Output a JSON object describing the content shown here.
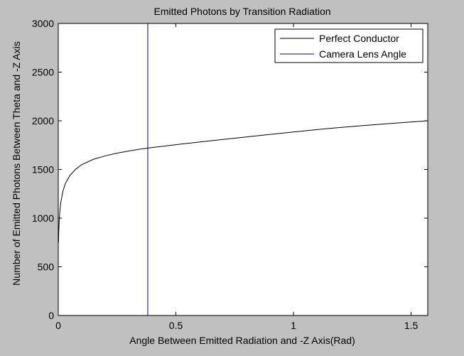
{
  "chart_data": {
    "type": "line",
    "title": "Emitted Photons by Transition Radiation",
    "xlabel": "Angle Between Emitted Radiation and -Z Axis(Rad)",
    "ylabel": "Number of Emitted Photons Between Theta and -Z Axis",
    "xlim": [
      0,
      1.5708
    ],
    "ylim": [
      0,
      3000
    ],
    "xticks": [
      0,
      0.5,
      1,
      1.5
    ],
    "xtick_labels": [
      "0",
      "0.5",
      "1",
      "1.5"
    ],
    "yticks": [
      0,
      500,
      1000,
      1500,
      2000,
      2500,
      3000
    ],
    "ytick_labels": [
      "0",
      "500",
      "1000",
      "1500",
      "2000",
      "2500",
      "3000"
    ],
    "grid": false,
    "legend_position": "top-right",
    "series": [
      {
        "name": "Perfect Conductor",
        "color": "#000000",
        "x": [
          0.001,
          0.002,
          0.004,
          0.006,
          0.01,
          0.02,
          0.03,
          0.05,
          0.075,
          0.1,
          0.15,
          0.2,
          0.25,
          0.3,
          0.35,
          0.4,
          0.5,
          0.6,
          0.7,
          0.8,
          0.9,
          1.0,
          1.1,
          1.2,
          1.3,
          1.4,
          1.5,
          1.5708
        ],
        "y": [
          750,
          850,
          975,
          1050,
          1150,
          1280,
          1355,
          1440,
          1505,
          1550,
          1605,
          1640,
          1668,
          1690,
          1710,
          1725,
          1755,
          1782,
          1808,
          1834,
          1860,
          1885,
          1910,
          1932,
          1952,
          1970,
          1988,
          2000
        ]
      },
      {
        "name": "Camera Lens Angle",
        "color": "#00007f",
        "x": [
          0.3805,
          0.3805
        ],
        "y": [
          0,
          3000
        ]
      }
    ]
  }
}
